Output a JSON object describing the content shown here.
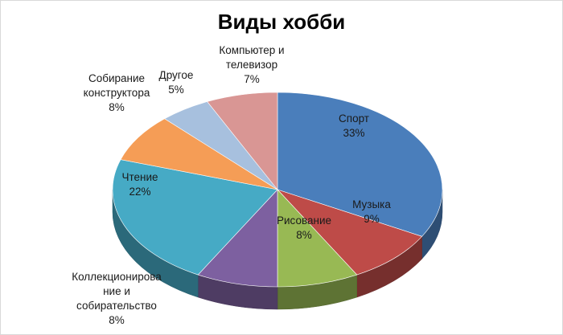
{
  "chart_data": {
    "type": "pie",
    "title": "Виды хобби",
    "slices": [
      {
        "name": "Спорт",
        "value": 33,
        "label": "33%",
        "color": "#4a7ebb"
      },
      {
        "name": "Музыка",
        "value": 9,
        "label": "9%",
        "color": "#be4b48"
      },
      {
        "name": "Рисование",
        "value": 8,
        "label": "8%",
        "color": "#98b954"
      },
      {
        "name": "Коллекционирование и собирательство",
        "value": 8,
        "label": "8%",
        "color": "#7d60a0"
      },
      {
        "name": "Чтение",
        "value": 22,
        "label": "22%",
        "color": "#46aac5"
      },
      {
        "name": "Собирание конструктора",
        "value": 8,
        "label": "8%",
        "color": "#f59d56"
      },
      {
        "name": "Другое",
        "value": 5,
        "label": "5%",
        "color": "#a7c0de"
      },
      {
        "name": "Компьютер и телевизор",
        "value": 7,
        "label": "7%",
        "color": "#d99694"
      }
    ],
    "legend": "none"
  }
}
